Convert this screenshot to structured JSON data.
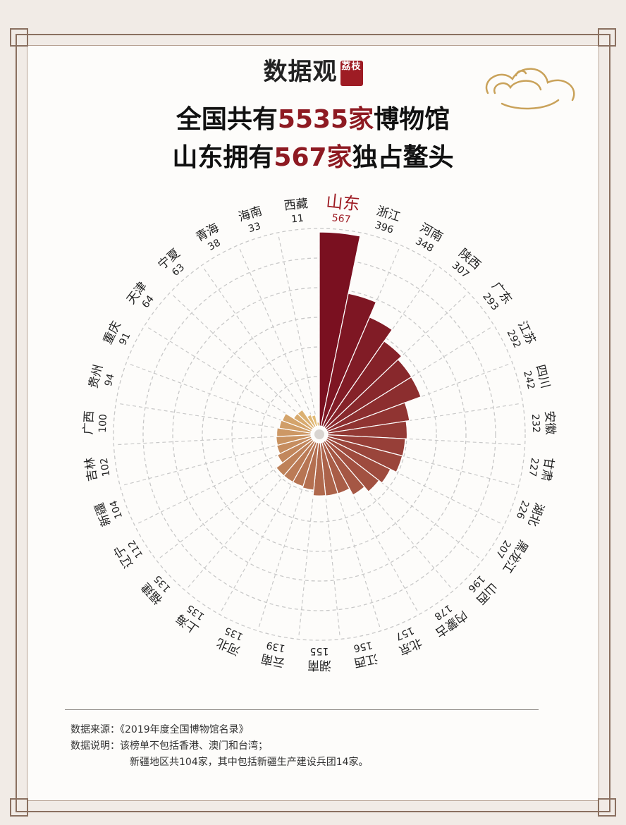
{
  "brand": {
    "name": "数据观",
    "seal": "荔枝"
  },
  "title": {
    "line1_pre": "全国共有",
    "line1_num": "5535家",
    "line1_post": "博物馆",
    "line2_pre": "山东拥有",
    "line2_num": "567家",
    "line2_post": "独占鳌头"
  },
  "colors": {
    "highlight": "#8e1a22",
    "label": "#222222",
    "top_label": "#9e1c24",
    "grid": "#c8c8c8",
    "bar_max": "#7a1020",
    "bar_min": "#e6c27a"
  },
  "chart_data": {
    "type": "bar",
    "polar": true,
    "categories": [
      "山东",
      "浙江",
      "河南",
      "陕西",
      "广东",
      "江苏",
      "四川",
      "安徽",
      "甘肃",
      "湖北",
      "黑龙江",
      "山西",
      "内蒙古",
      "北京",
      "江西",
      "湖南",
      "云南",
      "河北",
      "上海",
      "福建",
      "辽宁",
      "新疆",
      "吉林",
      "广西",
      "贵州",
      "重庆",
      "天津",
      "宁夏",
      "青海",
      "海南",
      "西藏"
    ],
    "values": [
      567,
      396,
      348,
      307,
      293,
      292,
      242,
      232,
      227,
      226,
      207,
      196,
      178,
      157,
      156,
      155,
      139,
      135,
      135,
      135,
      112,
      104,
      102,
      100,
      94,
      91,
      64,
      63,
      38,
      33,
      11
    ],
    "ylim": [
      0,
      567
    ]
  },
  "notes": {
    "source_label": "数据来源：",
    "source": "《2019年度全国博物馆名录》",
    "explain_label": "数据说明：",
    "explain1": "该榜单不包括香港、澳门和台湾；",
    "explain2": "新疆地区共104家，其中包括新疆生产建设兵团14家。"
  }
}
